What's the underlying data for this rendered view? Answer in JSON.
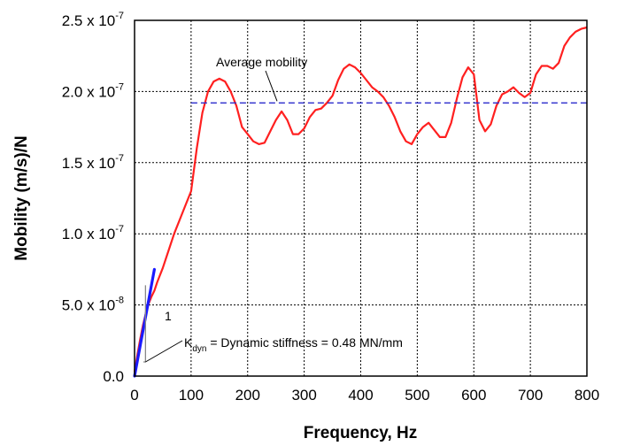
{
  "chart_data": {
    "type": "line",
    "xlabel": "Frequency, Hz",
    "ylabel": "Mobility (m/s)/N",
    "xlim": [
      0,
      800
    ],
    "ylim": [
      0,
      2.5e-07
    ],
    "grid": true,
    "grid_style": "dotted",
    "x_ticks": [
      0,
      100,
      200,
      300,
      400,
      500,
      600,
      700,
      800
    ],
    "x_tick_labels": [
      "0",
      "100",
      "200",
      "300",
      "400",
      "500",
      "600",
      "700",
      "800"
    ],
    "y_ticks": [
      {
        "value": 0,
        "mantissa": "0.0",
        "exp": ""
      },
      {
        "value": 5e-08,
        "mantissa": "5.0 x 10",
        "exp": "-8"
      },
      {
        "value": 1e-07,
        "mantissa": "1.0 x 10",
        "exp": "-7"
      },
      {
        "value": 1.5e-07,
        "mantissa": "1.5 x 10",
        "exp": "-7"
      },
      {
        "value": 2e-07,
        "mantissa": "2.0 x 10",
        "exp": "-7"
      },
      {
        "value": 2.5e-07,
        "mantissa": "2.5 x 10",
        "exp": "-7"
      }
    ],
    "colors": {
      "measured": "#ff2020",
      "stiffness_line": "#1a1aff",
      "average": "#2b2bcc",
      "grid": "#000000"
    },
    "series": [
      {
        "role": "measured",
        "x": [
          0,
          5,
          10,
          15,
          20,
          25,
          30,
          35,
          40,
          50,
          60,
          70,
          80,
          90,
          100,
          110,
          120,
          130,
          140,
          150,
          160,
          170,
          180,
          190,
          200,
          210,
          220,
          230,
          240,
          250,
          260,
          270,
          280,
          290,
          300,
          310,
          320,
          330,
          340,
          350,
          360,
          370,
          380,
          390,
          400,
          410,
          420,
          430,
          440,
          450,
          460,
          470,
          480,
          490,
          500,
          510,
          520,
          530,
          540,
          550,
          560,
          570,
          580,
          590,
          600,
          610,
          620,
          630,
          640,
          650,
          660,
          670,
          680,
          690,
          700,
          710,
          720,
          730,
          740,
          750,
          760,
          770,
          780,
          790,
          800
        ],
        "y": [
          3e-09,
          1.5e-08,
          2.6e-08,
          3.6e-08,
          4.4e-08,
          5.1e-08,
          5.6e-08,
          6e-08,
          6.6e-08,
          7.6e-08,
          8.8e-08,
          1e-07,
          1.1e-07,
          1.2e-07,
          1.3e-07,
          1.6e-07,
          1.85e-07,
          2e-07,
          2.07e-07,
          2.09e-07,
          2.07e-07,
          2e-07,
          1.9e-07,
          1.75e-07,
          1.7e-07,
          1.65e-07,
          1.63e-07,
          1.64e-07,
          1.72e-07,
          1.8e-07,
          1.86e-07,
          1.8e-07,
          1.7e-07,
          1.7e-07,
          1.74e-07,
          1.82e-07,
          1.87e-07,
          1.88e-07,
          1.92e-07,
          1.97e-07,
          2.08e-07,
          2.16e-07,
          2.19e-07,
          2.17e-07,
          2.13e-07,
          2.08e-07,
          2.03e-07,
          2e-07,
          1.96e-07,
          1.9e-07,
          1.82e-07,
          1.72e-07,
          1.65e-07,
          1.63e-07,
          1.7e-07,
          1.75e-07,
          1.78e-07,
          1.73e-07,
          1.68e-07,
          1.68e-07,
          1.78e-07,
          1.95e-07,
          2.1e-07,
          2.17e-07,
          2.12e-07,
          1.8e-07,
          1.72e-07,
          1.77e-07,
          1.9e-07,
          1.98e-07,
          2e-07,
          2.03e-07,
          1.99e-07,
          1.96e-07,
          1.99e-07,
          2.12e-07,
          2.18e-07,
          2.18e-07,
          2.16e-07,
          2.2e-07,
          2.32e-07,
          2.38e-07,
          2.42e-07,
          2.44e-07,
          2.45e-07
        ]
      },
      {
        "role": "stiffness_line",
        "x": [
          0,
          35
        ],
        "y": [
          0,
          7.5e-08
        ]
      },
      {
        "role": "average",
        "x": [
          100,
          800
        ],
        "y": [
          1.92e-07,
          1.92e-07
        ]
      }
    ],
    "annotations": {
      "average_label": "Average mobility",
      "slope_one": "1",
      "kdyn_symbol": "K",
      "kdyn_subscript": "dyn",
      "kdyn_text": " = Dynamic stiffness = 0.48 MN/mm"
    }
  }
}
